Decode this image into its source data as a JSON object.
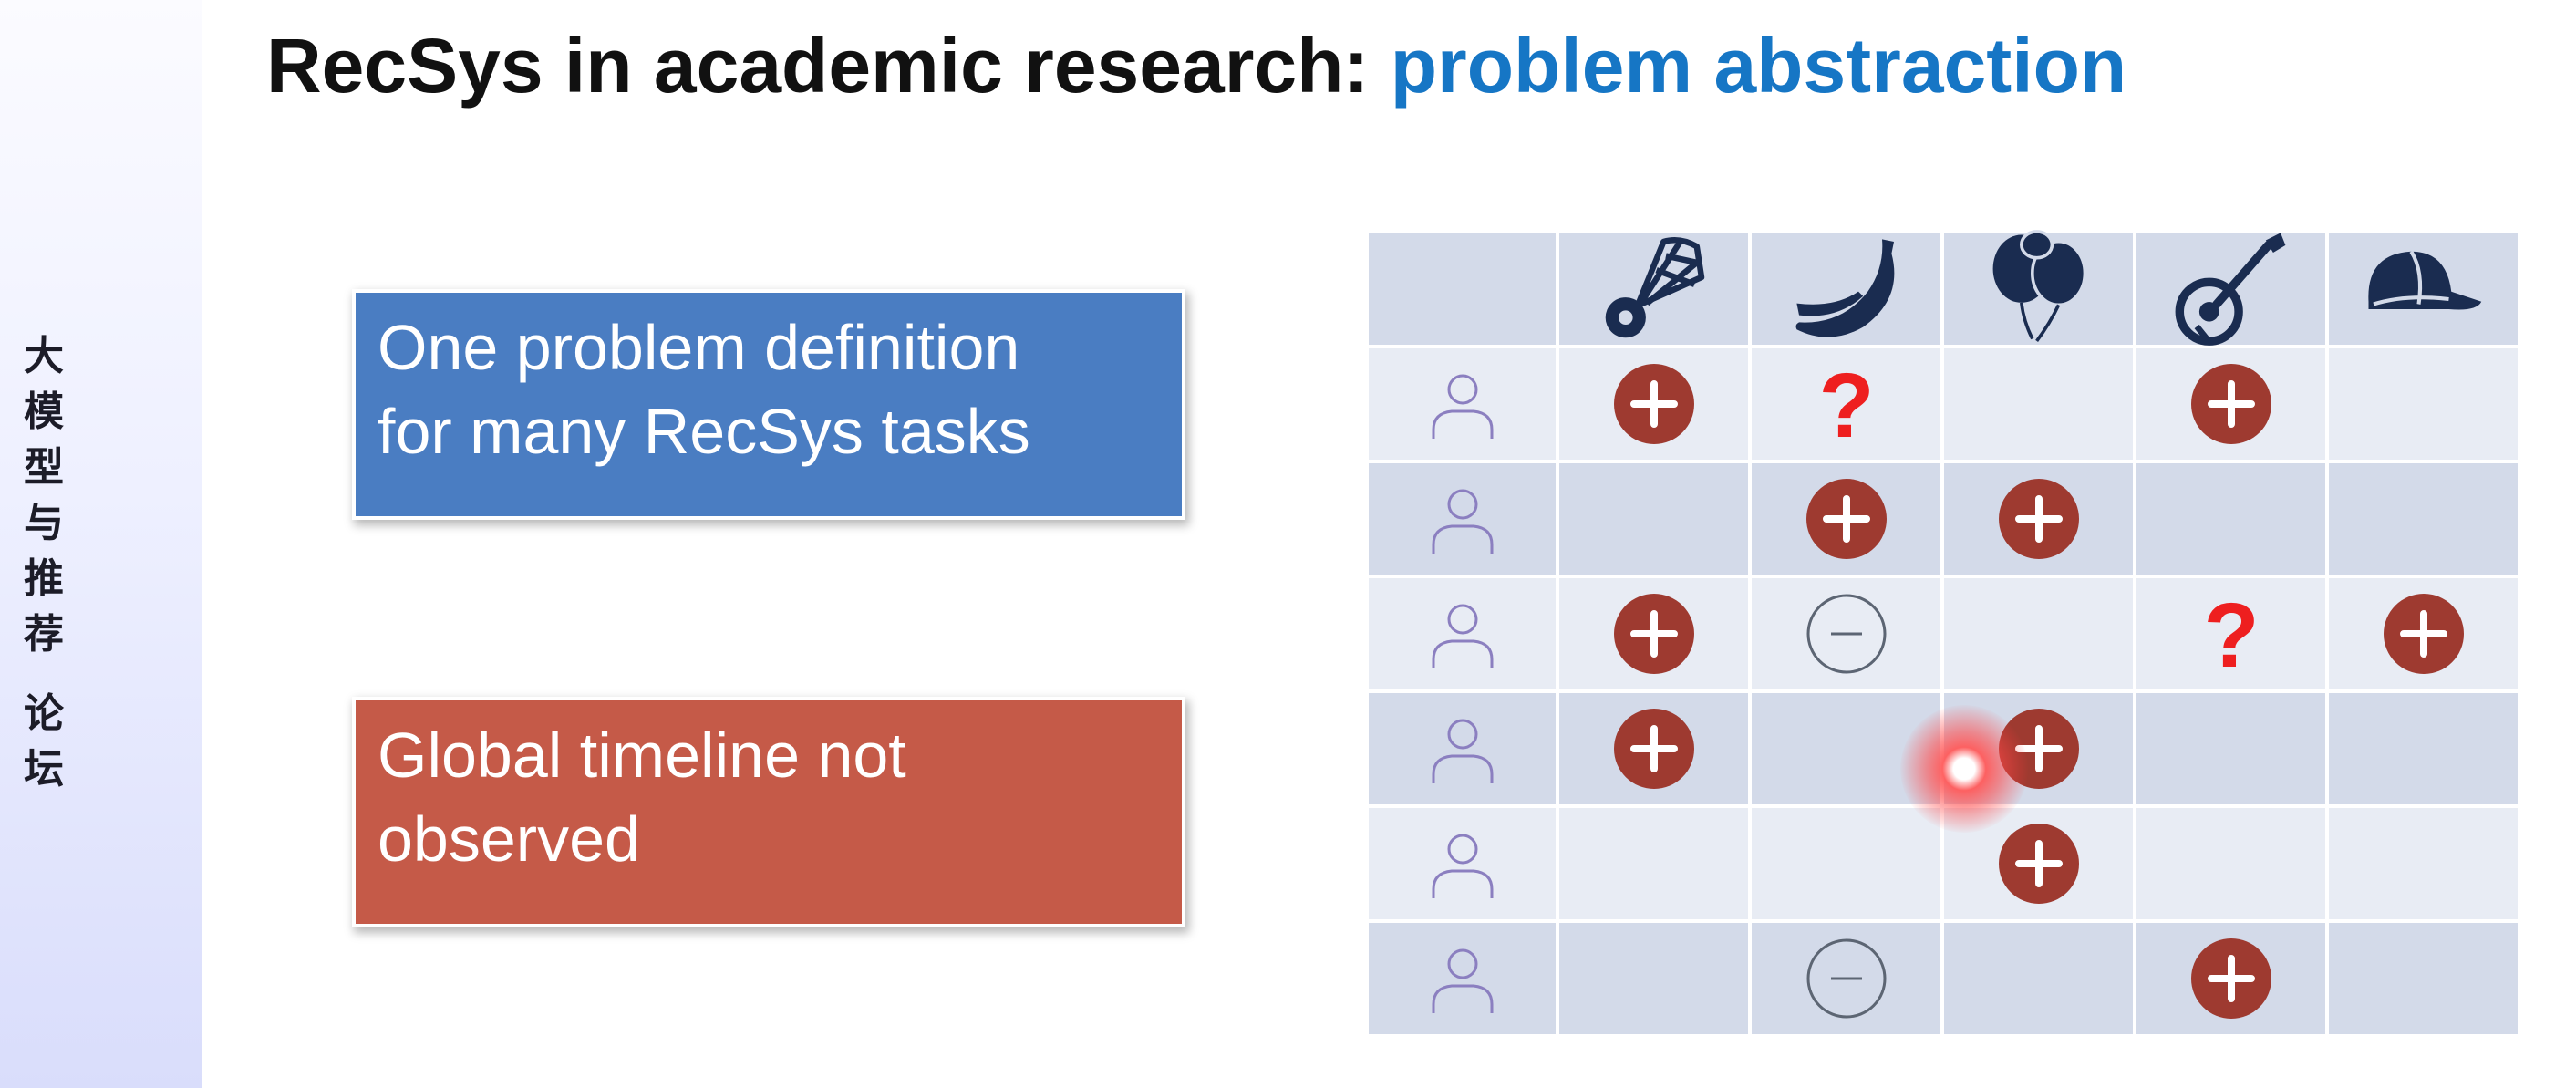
{
  "sidebar": {
    "chars": [
      "大",
      "模",
      "型",
      "与",
      "推",
      "荐",
      "",
      "论",
      "坛"
    ]
  },
  "title": {
    "main": "RecSys in academic research: ",
    "accent": "problem abstraction"
  },
  "callouts": [
    {
      "lines": [
        "One problem definition",
        "for many RecSys tasks"
      ],
      "color": "#4a7dc2"
    },
    {
      "lines": [
        "Global timeline not",
        "observed"
      ],
      "color": "#c55a48"
    }
  ],
  "matrix": {
    "items": [
      "shuttlecock-icon",
      "banana-icon",
      "balloons-icon",
      "banjo-icon",
      "cap-icon"
    ],
    "row_icon": "user-icon",
    "rows": [
      [
        "plus",
        "question",
        "",
        "plus",
        ""
      ],
      [
        "",
        "plus",
        "plus",
        "",
        ""
      ],
      [
        "plus",
        "minus",
        "",
        "question",
        "plus"
      ],
      [
        "plus",
        "",
        "plus",
        "",
        ""
      ],
      [
        "",
        "",
        "plus",
        "",
        ""
      ],
      [
        "",
        "minus",
        "",
        "plus",
        ""
      ]
    ],
    "colors": {
      "plus": "#9e3a30",
      "question": "#ee1f1f",
      "minus": "#5c6573",
      "icon": "#1a2c50",
      "user": "#8b7fc0"
    }
  },
  "question_mark": "?"
}
